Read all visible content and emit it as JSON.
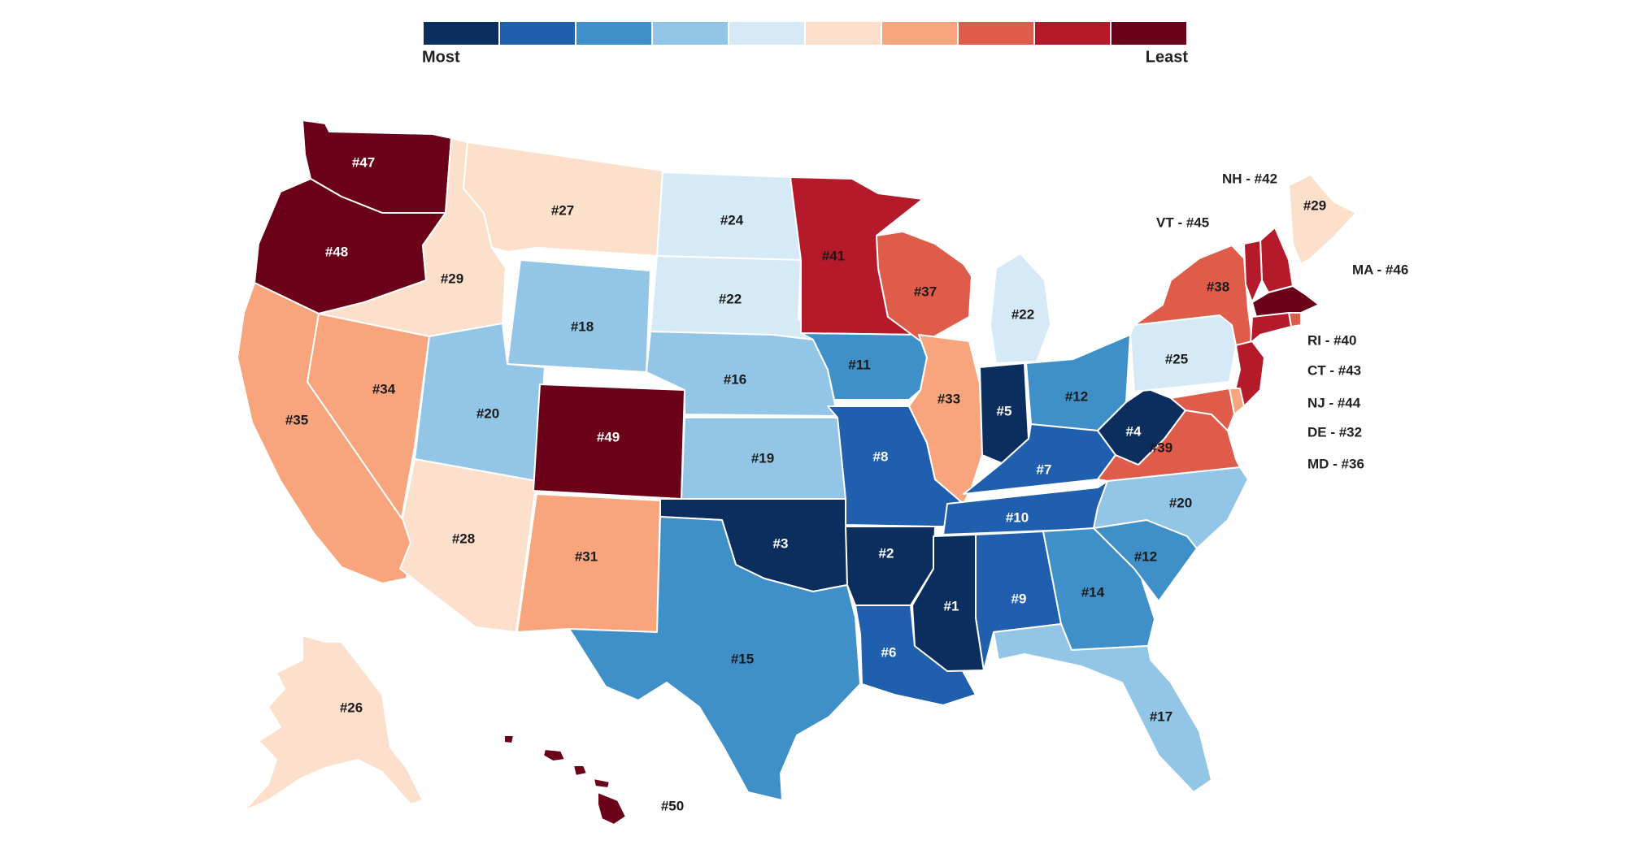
{
  "legend": {
    "label_low": "Most",
    "label_high": "Least",
    "scale_colors": [
      "#0b2e5e",
      "#1f5fae",
      "#3f8fc9",
      "#93c6e6",
      "#d6e9f6",
      "#fde0cc",
      "#f8a57d",
      "#e05c4a",
      "#b51a2b",
      "#6b0019"
    ]
  },
  "states": [
    {
      "id": "WA",
      "rank": "#47",
      "bin": 9
    },
    {
      "id": "OR",
      "rank": "#48",
      "bin": 9
    },
    {
      "id": "CA",
      "rank": "#35",
      "bin": 6
    },
    {
      "id": "NV",
      "rank": "#34",
      "bin": 6
    },
    {
      "id": "ID",
      "rank": "#29",
      "bin": 5
    },
    {
      "id": "MT",
      "rank": "#27",
      "bin": 5
    },
    {
      "id": "WY",
      "rank": "#18",
      "bin": 3
    },
    {
      "id": "UT",
      "rank": "#20",
      "bin": 3
    },
    {
      "id": "AZ",
      "rank": "#28",
      "bin": 5
    },
    {
      "id": "CO",
      "rank": "#49",
      "bin": 9
    },
    {
      "id": "NM",
      "rank": "#31",
      "bin": 6
    },
    {
      "id": "ND",
      "rank": "#24",
      "bin": 4
    },
    {
      "id": "SD",
      "rank": "#22",
      "bin": 4
    },
    {
      "id": "NE",
      "rank": "#16",
      "bin": 3
    },
    {
      "id": "KS",
      "rank": "#19",
      "bin": 3
    },
    {
      "id": "OK",
      "rank": "#3",
      "bin": 0
    },
    {
      "id": "TX",
      "rank": "#15",
      "bin": 2
    },
    {
      "id": "MN",
      "rank": "#41",
      "bin": 8
    },
    {
      "id": "IA",
      "rank": "#11",
      "bin": 2
    },
    {
      "id": "MO",
      "rank": "#8",
      "bin": 1
    },
    {
      "id": "AR",
      "rank": "#2",
      "bin": 0
    },
    {
      "id": "LA",
      "rank": "#6",
      "bin": 1
    },
    {
      "id": "WI",
      "rank": "#37",
      "bin": 7
    },
    {
      "id": "IL",
      "rank": "#33",
      "bin": 6
    },
    {
      "id": "MI",
      "rank": "#22",
      "bin": 4
    },
    {
      "id": "IN",
      "rank": "#5",
      "bin": 0
    },
    {
      "id": "OH",
      "rank": "#12",
      "bin": 2
    },
    {
      "id": "KY",
      "rank": "#7",
      "bin": 1
    },
    {
      "id": "TN",
      "rank": "#10",
      "bin": 1
    },
    {
      "id": "MS",
      "rank": "#1",
      "bin": 0
    },
    {
      "id": "AL",
      "rank": "#9",
      "bin": 1
    },
    {
      "id": "GA",
      "rank": "#14",
      "bin": 2
    },
    {
      "id": "FL",
      "rank": "#17",
      "bin": 3
    },
    {
      "id": "SC",
      "rank": "#12",
      "bin": 2
    },
    {
      "id": "NC",
      "rank": "#20",
      "bin": 3
    },
    {
      "id": "VA",
      "rank": "#39",
      "bin": 7
    },
    {
      "id": "WV",
      "rank": "#4",
      "bin": 0
    },
    {
      "id": "PA",
      "rank": "#25",
      "bin": 4
    },
    {
      "id": "NY",
      "rank": "#38",
      "bin": 7
    },
    {
      "id": "ME",
      "rank": "#29",
      "bin": 5
    },
    {
      "id": "AK",
      "rank": "#26",
      "bin": 5
    },
    {
      "id": "HI",
      "rank": "#50",
      "bin": 9
    }
  ],
  "small_states": [
    {
      "id": "NH",
      "label": "NH - #42",
      "bin": 8
    },
    {
      "id": "VT",
      "label": "VT - #45",
      "bin": 8
    },
    {
      "id": "MA",
      "label": "MA - #46",
      "bin": 9
    },
    {
      "id": "RI",
      "label": "RI - #40",
      "bin": 7
    },
    {
      "id": "CT",
      "label": "CT - #43",
      "bin": 8
    },
    {
      "id": "NJ",
      "label": "NJ - #44",
      "bin": 8
    },
    {
      "id": "DE",
      "label": "DE - #32",
      "bin": 6
    },
    {
      "id": "MD",
      "label": "MD - #36",
      "bin": 7
    }
  ]
}
